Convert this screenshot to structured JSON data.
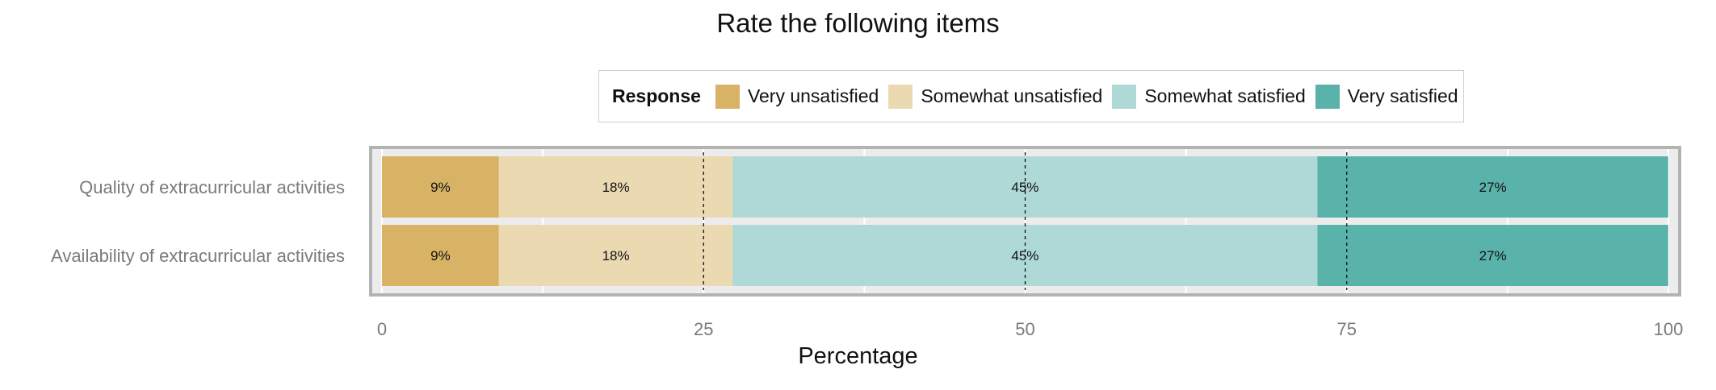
{
  "chart_data": {
    "type": "bar",
    "orientation": "horizontal",
    "stacked": true,
    "title": "Rate the following items",
    "xlabel": "Percentage",
    "ylabel": "",
    "xlim": [
      0,
      100
    ],
    "x_ticks": [
      "0",
      "25",
      "50",
      "75",
      "100"
    ],
    "reference_lines": [
      25,
      50,
      75
    ],
    "legend": {
      "title": "Response",
      "position": "top"
    },
    "categories": [
      "Quality of extracurricular activities",
      "Availability of extracurricular activities"
    ],
    "series": [
      {
        "name": "Very unsatisfied",
        "color": "#D9B365",
        "values": [
          9.09,
          9.09
        ],
        "labels": [
          "9%",
          "9%"
        ]
      },
      {
        "name": "Somewhat unsatisfied",
        "color": "#EBD9B2",
        "values": [
          18.18,
          18.18
        ],
        "labels": [
          "18%",
          "18%"
        ]
      },
      {
        "name": "Somewhat satisfied",
        "color": "#AED9D6",
        "values": [
          45.45,
          45.45
        ],
        "labels": [
          "45%",
          "45%"
        ]
      },
      {
        "name": "Very satisfied",
        "color": "#5AB3AB",
        "values": [
          27.27,
          27.27
        ],
        "labels": [
          "27%",
          "27%"
        ]
      }
    ]
  }
}
